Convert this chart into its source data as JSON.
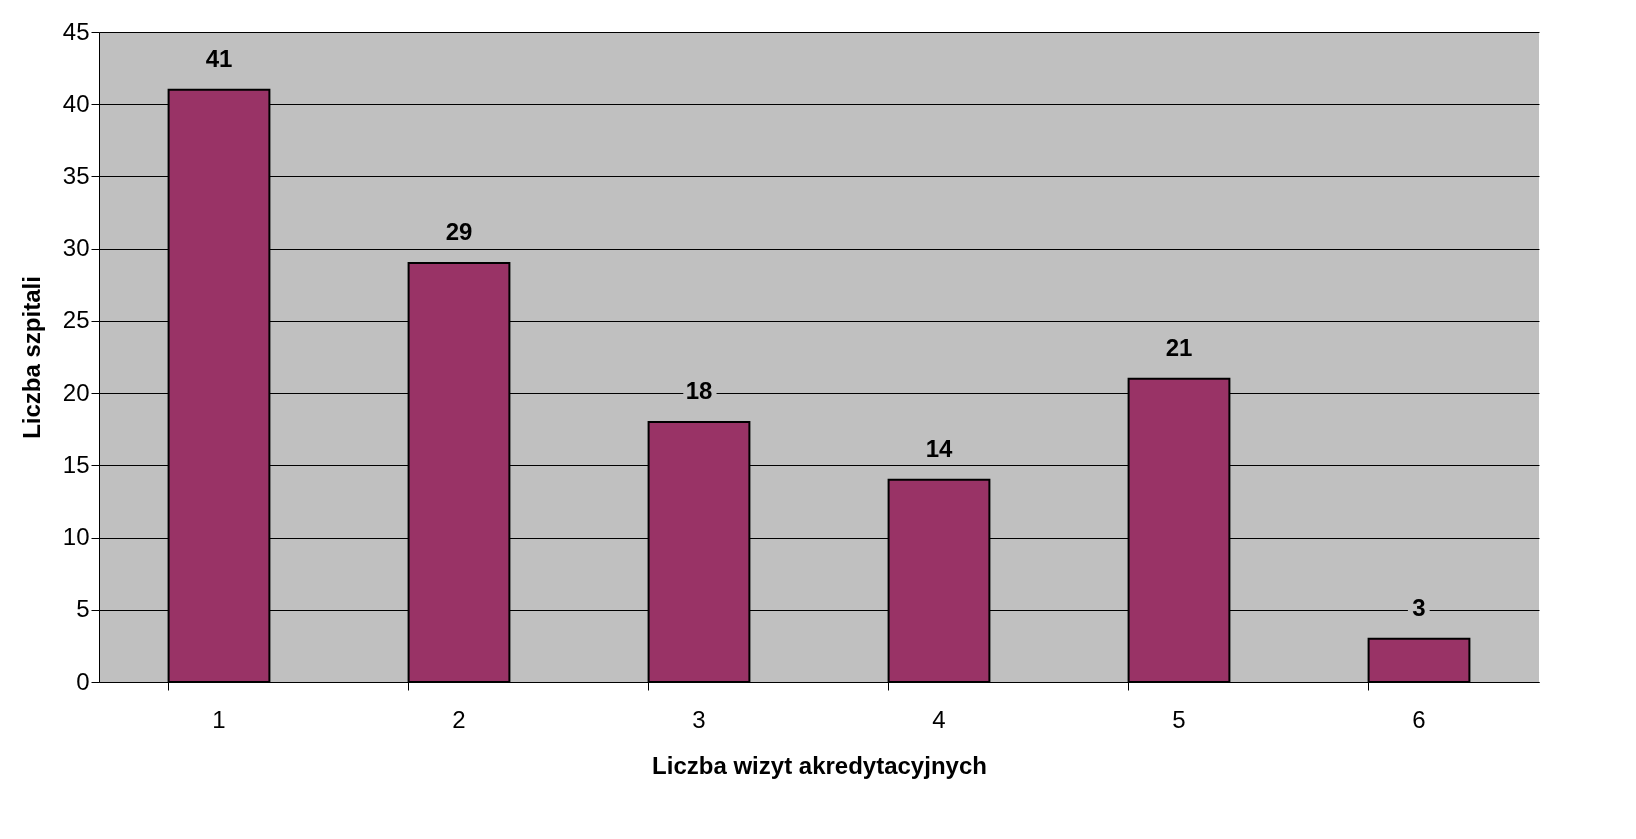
{
  "chart_data": {
    "type": "bar",
    "xlabel": "Liczba wizyt akredytacyjnych",
    "ylabel": "Liczba szpitali",
    "categories": [
      "1",
      "2",
      "3",
      "4",
      "5",
      "6"
    ],
    "series": [
      {
        "color": "#993366",
        "values": [
          41,
          29,
          18,
          14,
          21,
          3
        ]
      }
    ],
    "ylim": [
      0,
      45
    ],
    "yticks": [
      0,
      5,
      10,
      15,
      20,
      25,
      30,
      35,
      40,
      45
    ],
    "grid": "y",
    "data_labels": true,
    "legend": false
  }
}
